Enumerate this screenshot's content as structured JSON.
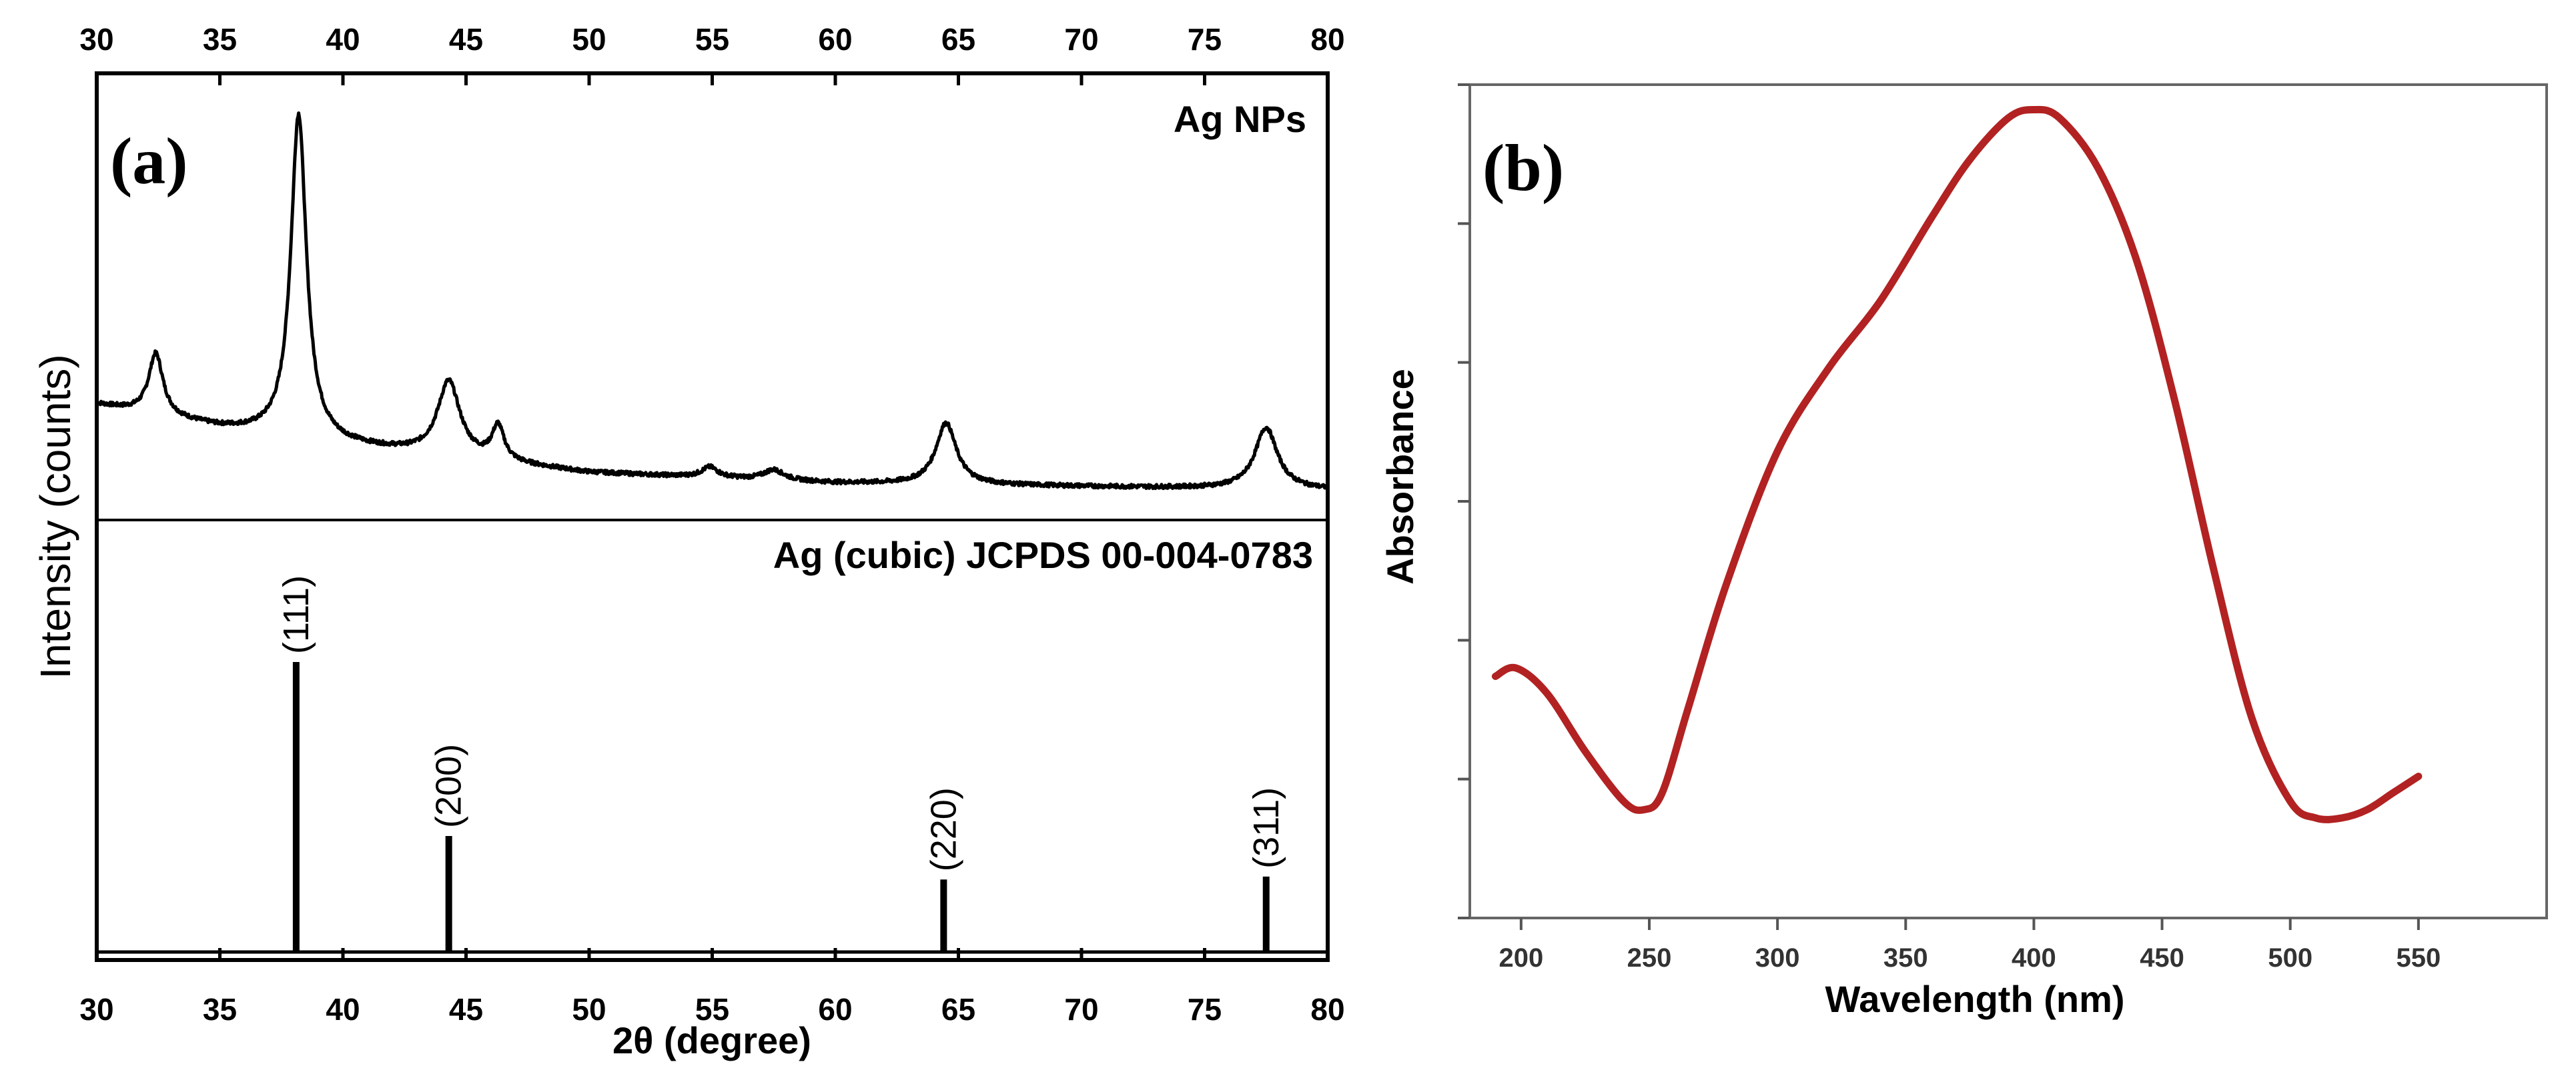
{
  "chart_data": [
    {
      "panel": "(a)",
      "type": "line",
      "xlabel": "2θ (degree)",
      "ylabel": "Intensity (counts)",
      "xlim": [
        30,
        80
      ],
      "xticks": [
        30,
        35,
        40,
        45,
        50,
        55,
        60,
        65,
        70,
        75,
        80
      ],
      "top_annotation": "Ag NPs",
      "series": [
        {
          "name": "Ag NPs",
          "baseline": [
            [
              30,
              0.25
            ],
            [
              35,
              0.18
            ],
            [
              40,
              0.13
            ],
            [
              50,
              0.05
            ],
            [
              60,
              0.02
            ],
            [
              80,
              0.0
            ]
          ],
          "peaks": [
            {
              "x": 32.4,
              "height": 0.18,
              "width": 0.35
            },
            {
              "x": 38.2,
              "height": 0.95,
              "width": 0.38
            },
            {
              "x": 44.3,
              "height": 0.22,
              "width": 0.55
            },
            {
              "x": 46.3,
              "height": 0.1,
              "width": 0.3
            },
            {
              "x": 54.9,
              "height": 0.03,
              "width": 0.4
            },
            {
              "x": 57.5,
              "height": 0.03,
              "width": 0.5
            },
            {
              "x": 64.5,
              "height": 0.18,
              "width": 0.5
            },
            {
              "x": 77.5,
              "height": 0.18,
              "width": 0.55
            }
          ]
        }
      ],
      "reference": {
        "label": "Ag (cubic) JCPDS 00-004-0783",
        "lines": [
          {
            "x": 38.1,
            "intensity": 100,
            "label": "(111)"
          },
          {
            "x": 44.3,
            "intensity": 40,
            "label": "(200)"
          },
          {
            "x": 64.4,
            "intensity": 25,
            "label": "(220)"
          },
          {
            "x": 77.5,
            "intensity": 26,
            "label": "(311)"
          }
        ]
      }
    },
    {
      "panel": "(b)",
      "type": "line",
      "xlabel": "Wavelength (nm)",
      "ylabel": "Absorbance",
      "xlim": [
        180,
        600
      ],
      "xticks": [
        200,
        250,
        300,
        350,
        400,
        450,
        500,
        550
      ],
      "ylim": [
        0,
        1
      ],
      "color": "#b22222",
      "series": [
        {
          "name": "Absorbance",
          "x": [
            190,
            198,
            210,
            225,
            240,
            248,
            255,
            265,
            280,
            300,
            320,
            340,
            360,
            375,
            390,
            400,
            410,
            425,
            440,
            455,
            470,
            485,
            500,
            510,
            520,
            530,
            540,
            550
          ],
          "y": [
            0.29,
            0.3,
            0.27,
            0.2,
            0.14,
            0.13,
            0.15,
            0.25,
            0.4,
            0.56,
            0.66,
            0.74,
            0.84,
            0.91,
            0.96,
            0.97,
            0.96,
            0.9,
            0.79,
            0.62,
            0.42,
            0.24,
            0.14,
            0.12,
            0.12,
            0.13,
            0.15,
            0.17
          ]
        }
      ]
    }
  ]
}
